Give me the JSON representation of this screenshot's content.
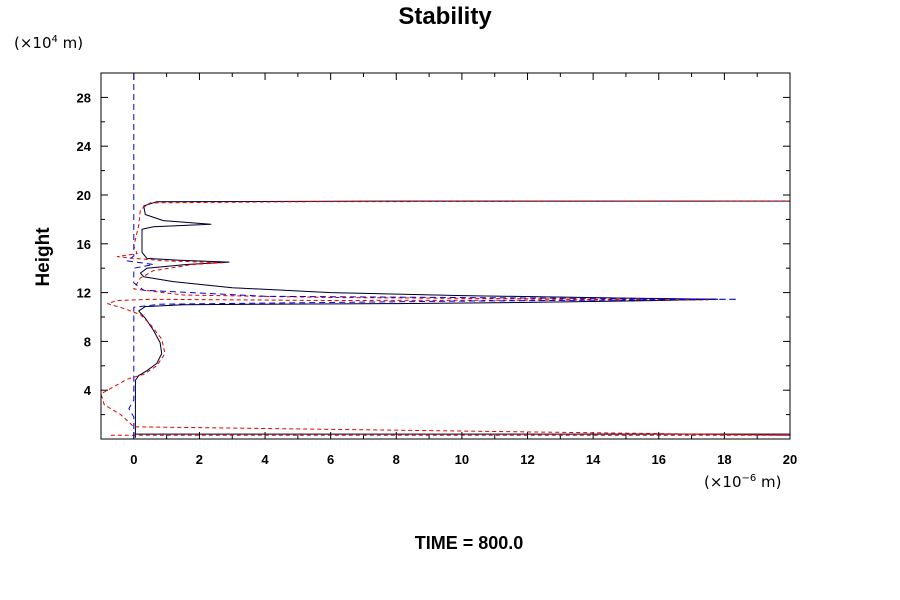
{
  "chart_data": {
    "type": "line",
    "title": "Stability",
    "ylabel": "Height",
    "y_unit": {
      "prefix": "(×10",
      "exponent": "4",
      "suffix": " m)"
    },
    "x_unit": {
      "prefix": "(×10",
      "exponent": "−6",
      "suffix": " m)"
    },
    "footer": "TIME = 800.0",
    "xlim": [
      -1,
      20
    ],
    "ylim": [
      0,
      30
    ],
    "x_ticks": [
      0,
      2,
      4,
      6,
      8,
      10,
      12,
      14,
      16,
      18,
      20
    ],
    "y_ticks": [
      4,
      8,
      12,
      16,
      20,
      24,
      28
    ],
    "grid": false,
    "series": [
      {
        "style": {
          "color": "#000000",
          "dash": "none",
          "overlay": "#00008b"
        },
        "points": [
          [
            0.05,
            0.1
          ],
          [
            0.05,
            0.4
          ],
          [
            20,
            0.4
          ],
          [
            0.05,
            0.4
          ],
          [
            0.05,
            4.8
          ],
          [
            0.15,
            5.2
          ],
          [
            0.4,
            5.6
          ],
          [
            0.7,
            6.2
          ],
          [
            0.85,
            7.0
          ],
          [
            0.8,
            7.9
          ],
          [
            0.6,
            8.9
          ],
          [
            0.35,
            9.9
          ],
          [
            0.15,
            10.5
          ],
          [
            0.35,
            10.85
          ],
          [
            1.5,
            11.0
          ],
          [
            4,
            11.05
          ],
          [
            8,
            11.1
          ],
          [
            12,
            11.2
          ],
          [
            16,
            11.35
          ],
          [
            17.8,
            11.45
          ],
          [
            15,
            11.55
          ],
          [
            10,
            11.75
          ],
          [
            6,
            12.0
          ],
          [
            3,
            12.4
          ],
          [
            1.2,
            12.9
          ],
          [
            0.3,
            13.3
          ],
          [
            0.2,
            13.6
          ],
          [
            0.4,
            14.0
          ],
          [
            1.6,
            14.3
          ],
          [
            2.9,
            14.5
          ],
          [
            1.4,
            14.65
          ],
          [
            0.4,
            14.8
          ],
          [
            0.25,
            15.3
          ],
          [
            0.25,
            17.2
          ],
          [
            0.6,
            17.4
          ],
          [
            2.35,
            17.6
          ],
          [
            0.9,
            17.9
          ],
          [
            0.35,
            18.4
          ],
          [
            0.3,
            19.1
          ],
          [
            0.7,
            19.45
          ],
          [
            8,
            19.5
          ],
          [
            20,
            19.5
          ]
        ]
      },
      {
        "style": {
          "color": "#e00000",
          "dash": "4,3"
        },
        "points": [
          [
            -0.7,
            0.3
          ],
          [
            20,
            0.3
          ],
          [
            0.0,
            1.0
          ],
          [
            -0.4,
            2.0
          ],
          [
            -0.9,
            2.8
          ],
          [
            -1.0,
            3.7
          ],
          [
            -0.6,
            4.3
          ],
          [
            -0.2,
            4.9
          ],
          [
            0.3,
            5.3
          ],
          [
            0.7,
            6.0
          ],
          [
            0.95,
            7.0
          ],
          [
            0.85,
            8.2
          ],
          [
            0.5,
            9.4
          ],
          [
            0.2,
            10.2
          ],
          [
            -0.3,
            10.7
          ],
          [
            -0.8,
            11.1
          ],
          [
            -0.5,
            11.35
          ],
          [
            0.5,
            11.45
          ],
          [
            6,
            11.35
          ],
          [
            17.5,
            11.4
          ],
          [
            6,
            11.6
          ],
          [
            1.5,
            11.8
          ],
          [
            0.0,
            12.3
          ],
          [
            0.2,
            13.2
          ],
          [
            0.6,
            13.8
          ],
          [
            1.8,
            14.3
          ],
          [
            2.7,
            14.45
          ],
          [
            1.0,
            14.6
          ],
          [
            0.0,
            14.8
          ],
          [
            -0.5,
            14.95
          ],
          [
            0.1,
            15.2
          ],
          [
            0.0,
            15.8
          ],
          [
            0.15,
            17.5
          ],
          [
            0.2,
            18.8
          ],
          [
            0.5,
            19.35
          ],
          [
            5,
            19.45
          ],
          [
            20,
            19.5
          ]
        ]
      },
      {
        "style": {
          "color": "#0000dd",
          "dash": "6,4"
        },
        "points": [
          [
            0.0,
            0.0
          ],
          [
            0.0,
            1.8
          ],
          [
            -0.15,
            2.5
          ],
          [
            0.0,
            3.2
          ],
          [
            0.0,
            10.8
          ],
          [
            0.8,
            11.05
          ],
          [
            10,
            11.3
          ],
          [
            18.4,
            11.45
          ],
          [
            4,
            11.7
          ],
          [
            0.3,
            12.2
          ],
          [
            0.0,
            12.8
          ],
          [
            0.0,
            14.0
          ],
          [
            0.6,
            14.3
          ],
          [
            -0.2,
            14.6
          ],
          [
            0.0,
            15.0
          ],
          [
            0.0,
            30.0
          ]
        ]
      }
    ]
  }
}
